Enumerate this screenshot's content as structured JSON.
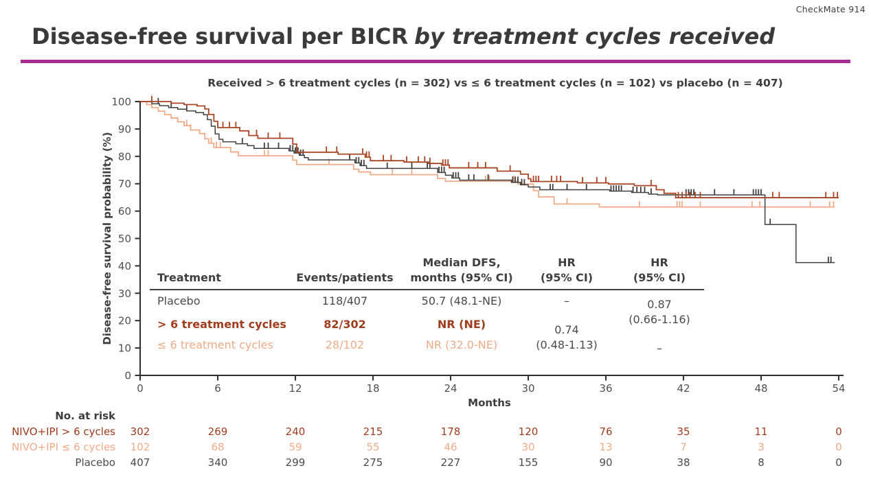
{
  "slide": {
    "badge": "CheckMate 914",
    "title_regular": "Disease-free survival per BICR",
    "title_italic": "by treatment cycles received",
    "underline_color": "#a62d96",
    "subtitle": "Received > 6 treatment cycles (n = 302) vs ≤ 6 treatment cycles (n = 102) vs placebo (n = 407)"
  },
  "chart_data": {
    "type": "line",
    "subtype": "kaplan-meier-step",
    "title": "Received > 6 treatment cycles (n = 302) vs ≤ 6 treatment cycles (n = 102) vs placebo (n = 407)",
    "xlabel": "Months",
    "ylabel": "Disease-free survival probability (%)",
    "xlim": [
      0,
      54
    ],
    "ylim": [
      0,
      100
    ],
    "xticks": [
      0,
      6,
      12,
      18,
      24,
      30,
      36,
      42,
      48,
      54
    ],
    "yticks": [
      0,
      10,
      20,
      30,
      40,
      50,
      60,
      70,
      80,
      90,
      100
    ],
    "grid": false,
    "legend_position": "none",
    "axis_color": "#2f2f2f",
    "tick_label_color": "#4f4f4f",
    "series": [
      {
        "name": "NIVO+IPI ≤ 6 cycles",
        "slug": "nivo-ipi-le6-cycles",
        "color": "#f2ab87",
        "points": [
          [
            0,
            100
          ],
          [
            0.5,
            98.9
          ],
          [
            0.9,
            97.8
          ],
          [
            1.4,
            96.5
          ],
          [
            1.9,
            95.2
          ],
          [
            2.4,
            94.0
          ],
          [
            2.9,
            92.6
          ],
          [
            3.4,
            91.2
          ],
          [
            3.9,
            89.6
          ],
          [
            4.6,
            88.3
          ],
          [
            5.0,
            86.4
          ],
          [
            5.3,
            84.8
          ],
          [
            5.7,
            83.2
          ],
          [
            7.0,
            81.6
          ],
          [
            7.6,
            80.2
          ],
          [
            11.8,
            78.6
          ],
          [
            12.1,
            77.0
          ],
          [
            16.5,
            75.3
          ],
          [
            16.9,
            74.3
          ],
          [
            17.8,
            73.3
          ],
          [
            23.0,
            71.9
          ],
          [
            23.6,
            70.9
          ],
          [
            29.2,
            69.9
          ],
          [
            30.4,
            67.5
          ],
          [
            30.8,
            65.2
          ],
          [
            32.0,
            62.6
          ],
          [
            35.5,
            61.5
          ],
          [
            53.7,
            61.5
          ]
        ],
        "censor_times": [
          3.6,
          3.9,
          5.5,
          5.9,
          6.2,
          9.6,
          9.9,
          14.6,
          19.5,
          21.0,
          26.7,
          27.0,
          28.9,
          29.2,
          29.5,
          33.0,
          38.6,
          41.5,
          41.7,
          41.9,
          43.3,
          47.3,
          47.9,
          51.8,
          53.3,
          53.6
        ]
      },
      {
        "name": "Placebo",
        "slug": "placebo",
        "color": "#3f3f3f",
        "points": [
          [
            0,
            100
          ],
          [
            0.9,
            99.2
          ],
          [
            1.5,
            98.5
          ],
          [
            2.2,
            97.8
          ],
          [
            2.9,
            97.2
          ],
          [
            3.6,
            96.6
          ],
          [
            4.3,
            96.0
          ],
          [
            4.9,
            95.2
          ],
          [
            5.2,
            93.4
          ],
          [
            5.5,
            91.0
          ],
          [
            5.8,
            88.2
          ],
          [
            6.1,
            86.2
          ],
          [
            6.4,
            85.3
          ],
          [
            7.4,
            84.6
          ],
          [
            8.3,
            83.9
          ],
          [
            8.8,
            82.9
          ],
          [
            11.5,
            82.0
          ],
          [
            11.9,
            81.2
          ],
          [
            12.3,
            80.4
          ],
          [
            12.7,
            79.5
          ],
          [
            13.0,
            78.7
          ],
          [
            16.6,
            77.6
          ],
          [
            17.0,
            76.6
          ],
          [
            17.5,
            75.6
          ],
          [
            23.0,
            74.1
          ],
          [
            23.6,
            73.1
          ],
          [
            24.1,
            72.1
          ],
          [
            24.7,
            71.3
          ],
          [
            28.7,
            70.5
          ],
          [
            29.4,
            69.6
          ],
          [
            30.0,
            68.8
          ],
          [
            30.9,
            67.8
          ],
          [
            36.3,
            67.3
          ],
          [
            38.0,
            66.8
          ],
          [
            39.3,
            66.2
          ],
          [
            40.0,
            65.9
          ],
          [
            48.3,
            55.1
          ],
          [
            50.7,
            41.2
          ],
          [
            53.7,
            41.2
          ]
        ],
        "censor_times": [
          1.4,
          2.4,
          3.6,
          7.9,
          9.6,
          9.9,
          10.7,
          11.6,
          11.8,
          12.0,
          12.2,
          12.4,
          12.6,
          16.2,
          16.7,
          16.9,
          17.1,
          17.3,
          19.1,
          21.0,
          22.2,
          22.4,
          23.1,
          23.3,
          23.5,
          24.2,
          24.4,
          24.6,
          25.4,
          25.8,
          26.9,
          28.8,
          29.0,
          29.2,
          29.5,
          29.7,
          31.7,
          31.9,
          33.0,
          34.5,
          36.4,
          36.6,
          36.8,
          37.0,
          37.2,
          38.1,
          38.4,
          38.7,
          39.0,
          39.5,
          42.2,
          42.4,
          42.6,
          42.8,
          44.4,
          45.9,
          47.4,
          47.6,
          47.8,
          48.0,
          48.7,
          53.2,
          53.4
        ]
      },
      {
        "name": "NIVO+IPI > 6 cycles",
        "slug": "nivo-ipi-gt6-cycles",
        "color": "#a94422",
        "points": [
          [
            0,
            100
          ],
          [
            2.4,
            99.4
          ],
          [
            3.4,
            98.9
          ],
          [
            4.4,
            98.4
          ],
          [
            5.0,
            97.3
          ],
          [
            5.3,
            95.3
          ],
          [
            5.7,
            92.8
          ],
          [
            6.0,
            90.5
          ],
          [
            7.7,
            89.3
          ],
          [
            8.4,
            87.6
          ],
          [
            9.1,
            86.6
          ],
          [
            11.8,
            84.5
          ],
          [
            12.1,
            81.5
          ],
          [
            15.3,
            80.8
          ],
          [
            17.4,
            79.7
          ],
          [
            17.8,
            78.4
          ],
          [
            20.4,
            77.9
          ],
          [
            22.3,
            77.4
          ],
          [
            23.3,
            76.8
          ],
          [
            23.9,
            75.8
          ],
          [
            27.6,
            74.6
          ],
          [
            29.4,
            73.5
          ],
          [
            30.0,
            71.8
          ],
          [
            30.2,
            70.8
          ],
          [
            33.8,
            70.3
          ],
          [
            36.2,
            69.9
          ],
          [
            38.2,
            69.3
          ],
          [
            39.9,
            67.8
          ],
          [
            40.5,
            66.5
          ],
          [
            41.4,
            64.9
          ],
          [
            54.0,
            64.9
          ]
        ],
        "censor_times": [
          0.9,
          6.4,
          6.9,
          7.4,
          9.0,
          9.9,
          10.8,
          14.4,
          15.2,
          17.2,
          17.5,
          17.7,
          18.8,
          19.4,
          20.6,
          21.5,
          22.0,
          22.4,
          23.4,
          23.6,
          23.8,
          25.4,
          26.1,
          26.7,
          28.6,
          30.4,
          30.6,
          30.8,
          31.8,
          32.2,
          32.5,
          34.2,
          35.3,
          36.0,
          39.5,
          41.6,
          41.9,
          42.2,
          42.5,
          42.9,
          43.3,
          48.9,
          49.4,
          53.0,
          53.6,
          53.9
        ]
      }
    ]
  },
  "stats_table": {
    "headers": [
      "Treatment",
      "Events/patients",
      "Median DFS,\nmonths (95% CI)",
      "HR\n(95% CI)",
      "HR\n(95% CI)"
    ],
    "rows": [
      {
        "treatment": "Placebo",
        "events": "118/407",
        "median": "50.7 (48.1-NE)"
      },
      {
        "treatment": "> 6 treatment cycles",
        "events": "82/302",
        "median": "NR (NE)"
      },
      {
        "treatment": "≤ 6 treatment cycles",
        "events": "28/102",
        "median": "NR (32.0-NE)"
      }
    ],
    "hr_col1": {
      "placebo_value": "–",
      "combined_value": "0.74\n(0.48-1.13)"
    },
    "hr_col2": {
      "combined_value": "0.87\n(0.66-1.16)",
      "le6_value": "–"
    }
  },
  "risk_table": {
    "title": "No. at risk",
    "rows": [
      {
        "label": "NIVO+IPI > 6 cycles",
        "color": "#a03c1c",
        "values": [
          302,
          269,
          240,
          215,
          178,
          120,
          76,
          35,
          11,
          0
        ]
      },
      {
        "label": "NIVO+IPI ≤ 6 cycles",
        "color": "#f2ab87",
        "values": [
          102,
          68,
          59,
          55,
          46,
          30,
          13,
          7,
          3,
          0
        ]
      },
      {
        "label": "Placebo",
        "color": "#4a4a4a",
        "values": [
          407,
          340,
          299,
          275,
          227,
          155,
          90,
          38,
          8,
          0
        ]
      }
    ]
  }
}
